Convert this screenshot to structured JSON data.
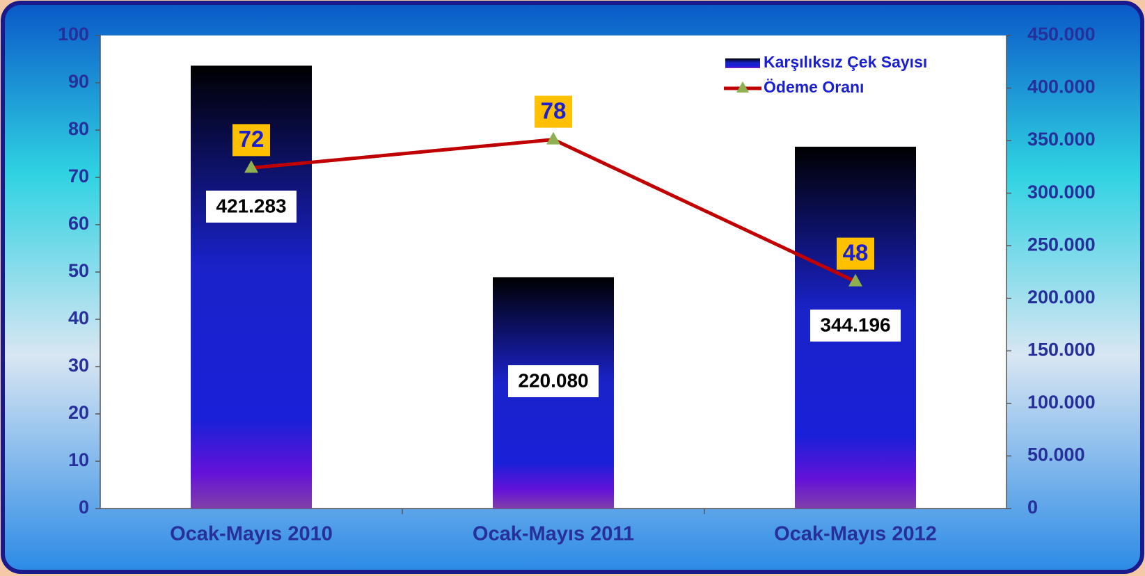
{
  "chart_data": {
    "type": "bar-line",
    "categories": [
      "Ocak-Mayıs 2010",
      "Ocak-Mayıs 2011",
      "Ocak-Mayıs 2012"
    ],
    "series": [
      {
        "name": "Karşılıksız Çek Sayısı",
        "type": "bar",
        "axis": "y2",
        "values": [
          421283,
          220080,
          344196
        ],
        "value_labels": [
          "421.283",
          "220.080",
          "344.196"
        ]
      },
      {
        "name": "Ödeme Oranı",
        "type": "line",
        "axis": "y",
        "color": "#c00000",
        "marker_color": "#8fb050",
        "values": [
          72,
          78,
          48
        ]
      }
    ],
    "ylim": [
      0,
      100
    ],
    "yticks": [
      0,
      10,
      20,
      30,
      40,
      50,
      60,
      70,
      80,
      90,
      100
    ],
    "y2lim": [
      0,
      450000
    ],
    "y2ticks": [
      0,
      {
        "value": 50000,
        "label": "50.000"
      },
      {
        "value": 100000,
        "label": "100.000"
      },
      {
        "value": 150000,
        "label": "150.000"
      },
      {
        "value": 200000,
        "label": "200.000"
      },
      {
        "value": 250000,
        "label": "250.000"
      },
      {
        "value": 300000,
        "label": "300.000"
      },
      {
        "value": 350000,
        "label": "350.000"
      },
      {
        "value": 400000,
        "label": "400.000"
      },
      {
        "value": 450000,
        "label": "450.000"
      }
    ],
    "legend": "upper right"
  }
}
